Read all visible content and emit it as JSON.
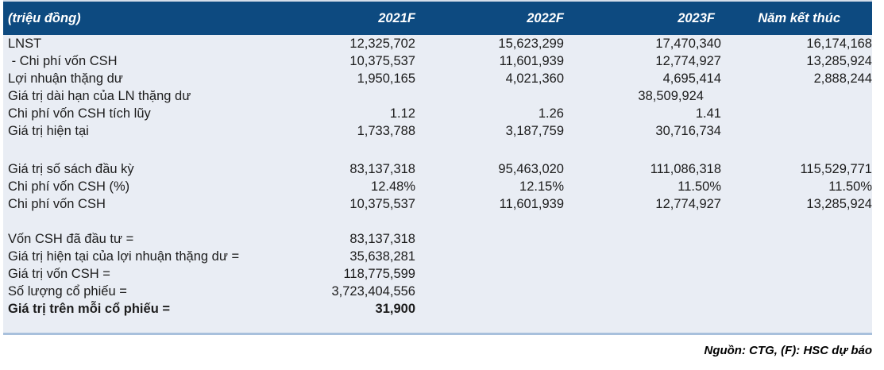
{
  "table": {
    "unit_label": "(triệu đồng)",
    "columns": [
      "2021F",
      "2022F",
      "2023F",
      "Năm kết thúc"
    ],
    "rows": [
      {
        "label": "LNST",
        "values": [
          "12,325,702",
          "15,623,299",
          "17,470,340",
          "16,174,168"
        ]
      },
      {
        "label": " - Chi phí vốn CSH",
        "values": [
          "10,375,537",
          "11,601,939",
          "12,774,927",
          "13,285,924"
        ]
      },
      {
        "label": "Lợi nhuận thặng dư",
        "values": [
          "1,950,165",
          "4,021,360",
          "4,695,414",
          "2,888,244"
        ]
      },
      {
        "label": "Giá trị dài hạn của LN thặng dư",
        "values": [
          "",
          "",
          {
            "v": "38,509,924",
            "indent": true
          },
          ""
        ]
      },
      {
        "label": "Chi phí vốn CSH tích lũy",
        "values": [
          "1.12",
          "1.26",
          "1.41",
          ""
        ]
      },
      {
        "label": "Giá trị hiện tại",
        "values": [
          "1,733,788",
          "3,187,759",
          "30,716,734",
          ""
        ]
      },
      {
        "spacer": 26
      },
      {
        "label": "Giá trị số sách đầu kỳ",
        "values": [
          "83,137,318",
          "95,463,020",
          "111,086,318",
          "115,529,771"
        ]
      },
      {
        "label": "Chi phí vốn CSH (%)",
        "values": [
          "12.48%",
          "12.15%",
          "11.50%",
          "11.50%"
        ]
      },
      {
        "label": "Chi phí vốn CSH",
        "values": [
          "10,375,537",
          "11,601,939",
          "12,774,927",
          "13,285,924"
        ]
      },
      {
        "spacer": 22
      },
      {
        "label": "Vốn CSH đã đầu tư =",
        "values": [
          "83,137,318",
          "",
          "",
          ""
        ]
      },
      {
        "label": "Giá trị hiện tại của lợi nhuận thặng dư =",
        "values": [
          "35,638,281",
          "",
          "",
          ""
        ]
      },
      {
        "label": "Giá trị vốn CSH =",
        "values": [
          "118,775,599",
          "",
          "",
          ""
        ]
      },
      {
        "label": "Số lượng cổ phiếu =",
        "values": [
          "3,723,404,556",
          "",
          "",
          ""
        ]
      },
      {
        "label": "Giá trị trên mỗi cổ phiếu =",
        "bold": true,
        "values": [
          "31,900",
          "",
          "",
          ""
        ]
      },
      {
        "spacer": 19
      }
    ]
  },
  "footer": {
    "source_note": "Nguồn: CTG, (F): HSC dự báo"
  },
  "colors": {
    "header-bg": "#0d4a80",
    "header-text": "#ffffff",
    "body-bg": "#e9edf4",
    "rule": "#a8c0dc",
    "text": "#1c1c1c"
  }
}
